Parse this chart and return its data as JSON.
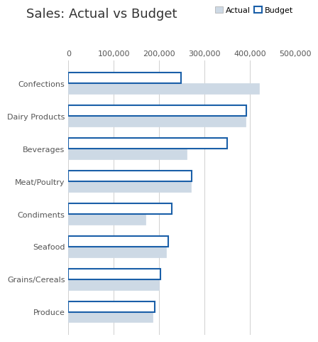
{
  "title": "Sales: Actual vs Budget",
  "categories": [
    "Confections",
    "Dairy Products",
    "Beverages",
    "Meat/Poultry",
    "Condiments",
    "Seafood",
    "Grains/Cereals",
    "Produce"
  ],
  "actual": [
    420000,
    390000,
    260000,
    270000,
    170000,
    215000,
    200000,
    185000
  ],
  "budget": [
    248000,
    393000,
    350000,
    272000,
    228000,
    220000,
    203000,
    190000
  ],
  "actual_color": "#cdd9e5",
  "budget_color": "#1a5fa8",
  "xlim": [
    0,
    500000
  ],
  "xticks": [
    0,
    100000,
    200000,
    300000,
    400000,
    500000
  ],
  "xtick_labels": [
    "0",
    "100,000",
    "200,000",
    "300,000",
    "400,000",
    "500,000"
  ],
  "background_color": "#ffffff",
  "grid_color": "#d0d0d0",
  "title_fontsize": 13,
  "tick_fontsize": 8,
  "bar_height": 0.32
}
